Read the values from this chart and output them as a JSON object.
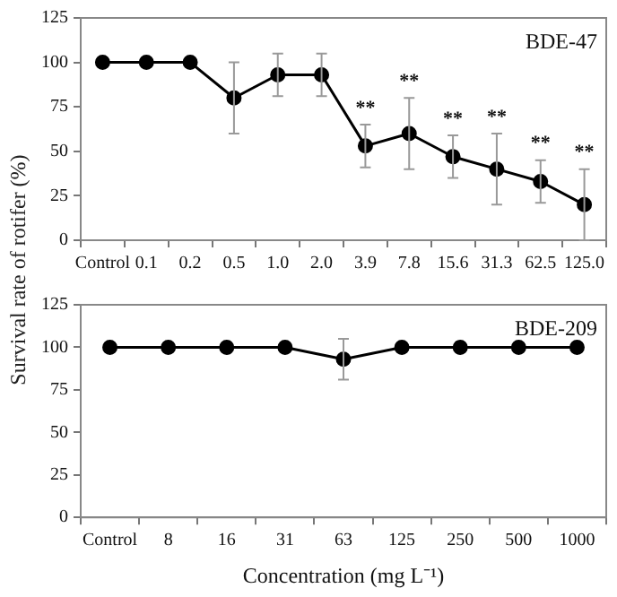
{
  "chart_data": [
    {
      "type": "line",
      "ylabel": "Survival rate of rotifer (%)",
      "categories": [
        "Control",
        "0.1",
        "0.2",
        "0.5",
        "1.0",
        "2.0",
        "3.9",
        "7.8",
        "15.6",
        "31.3",
        "62.5",
        "125.0"
      ],
      "series": [
        {
          "color": "#000000",
          "values": [
            100,
            100,
            100,
            80,
            93,
            93,
            53,
            60,
            47,
            40,
            33,
            20
          ],
          "errors": [
            null,
            null,
            null,
            20,
            12,
            12,
            12,
            20,
            12,
            20,
            12,
            20
          ]
        }
      ],
      "ylim": [
        0,
        125
      ],
      "yticks": [
        0,
        25,
        50,
        75,
        100,
        125
      ],
      "grid": false,
      "legend": false,
      "marker": "circle",
      "line_style": "solid",
      "annotations": [
        "BDE-47",
        {
          "text": "**",
          "x": "3.9",
          "y": 65
        },
        {
          "text": "**",
          "x": "7.8",
          "y": 80
        },
        {
          "text": "**",
          "x": "15.6",
          "y": 59
        },
        {
          "text": "**",
          "x": "31.3",
          "y": 60
        },
        {
          "text": "**",
          "x": "62.5",
          "y": 45
        },
        {
          "text": "**",
          "x": "125.0",
          "y": 40
        }
      ]
    },
    {
      "type": "line",
      "xlabel": "Concentration (mg L⁻¹)",
      "categories": [
        "Control",
        "8",
        "16",
        "31",
        "63",
        "125",
        "250",
        "500",
        "1000"
      ],
      "series": [
        {
          "color": "#000000",
          "values": [
            100,
            100,
            100,
            100,
            93,
            100,
            100,
            100,
            100
          ],
          "errors": [
            null,
            null,
            null,
            null,
            12,
            null,
            null,
            null,
            null
          ]
        }
      ],
      "ylim": [
        0,
        125
      ],
      "yticks": [
        0,
        25,
        50,
        75,
        100,
        125
      ],
      "grid": false,
      "legend": false,
      "marker": "circle",
      "line_style": "solid",
      "annotations": [
        "BDE-209"
      ]
    }
  ]
}
